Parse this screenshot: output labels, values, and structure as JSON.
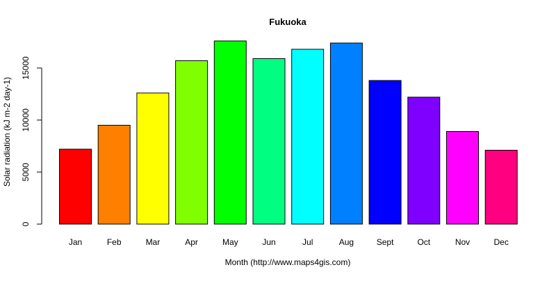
{
  "chart_data": {
    "type": "bar",
    "title": "Fukuoka",
    "xlabel": "Month (http://www.maps4gis.com)",
    "ylabel": "Solar radiation (kJ m-2 day-1)",
    "ylim": [
      0,
      17600
    ],
    "yticks": [
      0,
      5000,
      10000,
      15000
    ],
    "grid": false,
    "legend": "none",
    "categories": [
      "Jan",
      "Feb",
      "Mar",
      "Apr",
      "May",
      "Jun",
      "Jul",
      "Aug",
      "Sept",
      "Oct",
      "Nov",
      "Dec"
    ],
    "values": [
      7200,
      9500,
      12600,
      15700,
      17600,
      15900,
      16800,
      17400,
      13800,
      12200,
      8900,
      7100
    ],
    "colors": [
      "#ff0000",
      "#ff8000",
      "#ffff00",
      "#80ff00",
      "#00ff00",
      "#00ff80",
      "#00ffff",
      "#0080ff",
      "#0000ff",
      "#8000ff",
      "#ff00ff",
      "#ff0080"
    ]
  }
}
